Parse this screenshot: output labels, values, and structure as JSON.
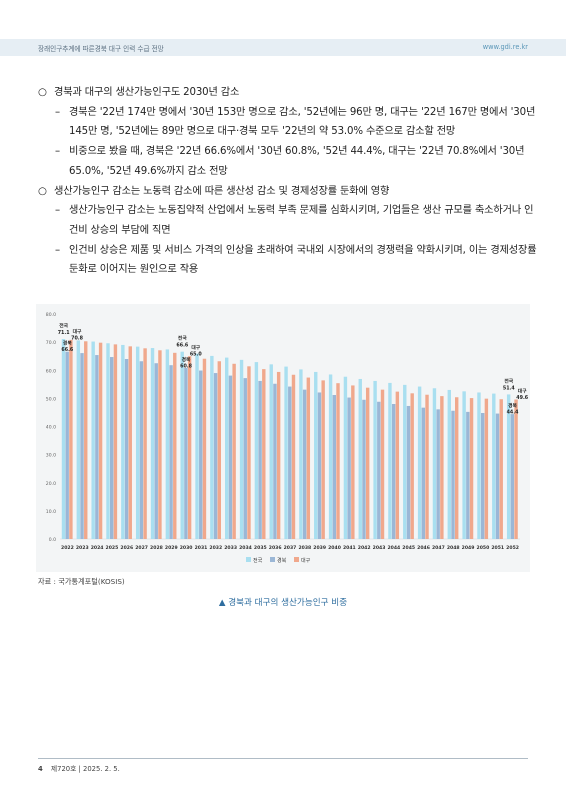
{
  "header": {
    "title": "장래인구추계에 따른경북 대구 인력 수급 전망",
    "url": "www.gdi.re.kr"
  },
  "body": {
    "b1": {
      "marker": "○",
      "text": "경북과 대구의 생산가능인구도 2030년 감소",
      "s1": {
        "marker": "–",
        "text": "경북은 '22년 174만 명에서 '30년 153만 명으로 감소, '52년에는 96만 명, 대구는 '22년 167만 명에서 '30년 145만 명, '52년에는 89만 명으로 대구·경북 모두 '22년의 약 53.0% 수준으로 감소할 전망"
      },
      "s2": {
        "marker": "–",
        "text": "비중으로 봤을 때, 경북은 '22년 66.6%에서 '30년 60.8%, '52년 44.4%, 대구는 '22년 70.8%에서 '30년 65.0%, '52년 49.6%까지 감소 전망"
      }
    },
    "b2": {
      "marker": "○",
      "text": "생산가능인구 감소는 노동력 감소에 따른 생산성 감소 및 경제성장률 둔화에 영향",
      "s1": {
        "marker": "–",
        "text": "생산가능인구 감소는 노동집약적 산업에서 노동력 부족 문제를 심화시키며, 기업들은 생산 규모를 축소하거나 인건비 상승의 부담에 직면"
      },
      "s2": {
        "marker": "–",
        "text": "인건비 상승은 제품 및 서비스 가격의 인상을 초래하여 국내외 시장에서의 경쟁력을 약화시키며, 이는 경제성장률 둔화로 이어지는 원인으로 작용"
      }
    }
  },
  "chart_data": {
    "type": "bar",
    "categories": [
      "2022",
      "2023",
      "2024",
      "2025",
      "2026",
      "2027",
      "2028",
      "2029",
      "2030",
      "2031",
      "2032",
      "2033",
      "2034",
      "2035",
      "2036",
      "2037",
      "2038",
      "2039",
      "2040",
      "2041",
      "2042",
      "2043",
      "2044",
      "2045",
      "2046",
      "2047",
      "2048",
      "2049",
      "2050",
      "2051",
      "2052"
    ],
    "series": [
      {
        "name": "전국",
        "color": "#a9dff0",
        "values": [
          71.1,
          70.6,
          70.2,
          69.6,
          69.0,
          68.4,
          67.9,
          67.4,
          66.6,
          65.9,
          65.1,
          64.5,
          63.7,
          62.9,
          62.1,
          61.3,
          60.3,
          59.4,
          58.5,
          57.7,
          56.9,
          56.2,
          55.5,
          54.8,
          54.2,
          53.6,
          53.0,
          52.5,
          52.1,
          51.7,
          51.4
        ]
      },
      {
        "name": "경북",
        "color": "#9bb7d6",
        "values": [
          66.6,
          66.1,
          65.4,
          64.7,
          64.0,
          63.2,
          62.5,
          61.8,
          60.8,
          59.9,
          59.0,
          58.1,
          57.2,
          56.2,
          55.2,
          54.2,
          53.1,
          52.1,
          51.2,
          50.3,
          49.5,
          48.8,
          48.0,
          47.3,
          46.7,
          46.1,
          45.6,
          45.2,
          44.8,
          44.6,
          44.4
        ]
      },
      {
        "name": "대구",
        "color": "#f0a88c",
        "values": [
          70.8,
          70.3,
          69.8,
          69.2,
          68.5,
          67.8,
          67.1,
          66.2,
          65.0,
          64.1,
          63.2,
          62.3,
          61.4,
          60.4,
          59.4,
          58.4,
          57.4,
          56.4,
          55.4,
          54.6,
          53.8,
          53.1,
          52.4,
          51.8,
          51.3,
          50.8,
          50.4,
          50.1,
          49.9,
          49.7,
          49.6
        ]
      }
    ],
    "ylim": [
      0,
      80
    ],
    "yticks": [
      "0.0",
      "10.0",
      "20.0",
      "30.0",
      "40.0",
      "50.0",
      "60.0",
      "70.0",
      "80.0"
    ],
    "grid": false,
    "legend": "bottom",
    "annotations": {
      "y2022": {
        "national_label": "전국",
        "national_value": "71.1",
        "gb_label": "경북",
        "gb_value": "66.6",
        "dg_label": "대구",
        "dg_value": "70.8"
      },
      "y2030": {
        "national_label": "전국",
        "national_value": "66.6",
        "gb_label": "경북",
        "gb_value": "60.8",
        "dg_label": "대구",
        "dg_value": "65.0"
      },
      "y2052": {
        "national_label": "전국",
        "national_value": "51.4",
        "gb_label": "경북",
        "gb_value": "44.4",
        "dg_label": "대구",
        "dg_value": "49.6"
      }
    }
  },
  "source": "자료 : 국가통계포털(KOSIS)",
  "caption": "▲ 경북과 대구의 생산가능인구 비중",
  "footer": {
    "page": "4",
    "issue": "제720호 | 2025. 2. 5."
  }
}
